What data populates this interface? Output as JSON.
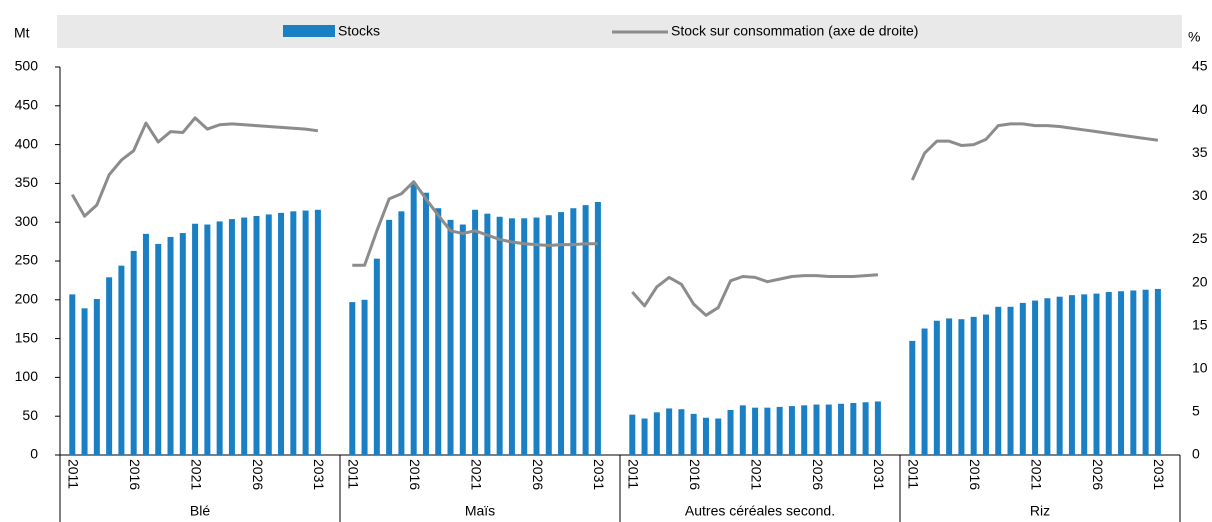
{
  "chart_data": {
    "type": "bar",
    "ylabel": "Mt",
    "y2label": "%",
    "ylim": [
      0,
      500
    ],
    "yticks": [
      0,
      50,
      100,
      150,
      200,
      250,
      300,
      350,
      400,
      450,
      500
    ],
    "y2lim": [
      0,
      45
    ],
    "y2ticks": [
      0,
      5,
      10,
      15,
      20,
      25,
      30,
      35,
      40,
      45
    ],
    "groups": [
      {
        "name": "Blé",
        "categories": [
          "2011",
          null,
          null,
          null,
          null,
          "2016",
          null,
          null,
          null,
          null,
          "2021",
          null,
          null,
          null,
          null,
          "2026",
          null,
          null,
          null,
          null,
          "2031"
        ]
      },
      {
        "name": "Maïs",
        "categories": [
          "2011",
          null,
          null,
          null,
          null,
          "2016",
          null,
          null,
          null,
          null,
          "2021",
          null,
          null,
          null,
          null,
          "2026",
          null,
          null,
          null,
          null,
          "2031"
        ]
      },
      {
        "name": "Autres céréales second.",
        "categories": [
          "2011",
          null,
          null,
          null,
          null,
          "2016",
          null,
          null,
          null,
          null,
          "2021",
          null,
          null,
          null,
          null,
          "2026",
          null,
          null,
          null,
          null,
          "2031"
        ]
      },
      {
        "name": "Riz",
        "categories": [
          "2011",
          null,
          null,
          null,
          null,
          "2016",
          null,
          null,
          null,
          null,
          "2021",
          null,
          null,
          null,
          null,
          "2026",
          null,
          null,
          null,
          null,
          "2031"
        ]
      }
    ],
    "series": [
      {
        "name": "Stocks",
        "type": "bar",
        "color": "#1b7fc3",
        "values": [
          [
            207,
            189,
            201,
            229,
            244,
            263,
            285,
            272,
            281,
            286,
            298,
            297,
            301,
            304,
            306,
            308,
            310,
            312,
            314,
            315,
            316
          ],
          [
            197,
            200,
            253,
            303,
            314,
            350,
            338,
            318,
            303,
            297,
            316,
            311,
            307,
            305,
            305,
            306,
            309,
            313,
            318,
            322,
            326
          ],
          [
            52,
            47,
            55,
            60,
            59,
            53,
            48,
            47,
            58,
            64,
            61,
            61,
            62,
            63,
            64,
            65,
            65,
            66,
            67,
            68,
            69
          ],
          [
            147,
            163,
            173,
            176,
            175,
            178,
            181,
            191,
            191,
            196,
            199,
            202,
            204,
            206,
            207,
            208,
            210,
            211,
            212,
            213,
            214
          ]
        ]
      },
      {
        "name": "Stock sur consommation (axe de droite)",
        "type": "line",
        "axis": "y2",
        "color": "#8c8c8c",
        "values": [
          [
            30.2,
            27.7,
            29,
            32.5,
            34.2,
            35.3,
            38.5,
            36.3,
            37.5,
            37.4,
            39.1,
            37.8,
            38.3,
            38.4,
            38.3,
            38.2,
            38.1,
            38,
            37.9,
            37.8,
            37.6
          ],
          [
            22,
            22,
            26,
            29.7,
            30.3,
            31.7,
            29.7,
            27.8,
            26,
            25.7,
            26,
            25.5,
            25,
            24.7,
            24.5,
            24.4,
            24.3,
            24.4,
            24.4,
            24.5,
            24.5
          ],
          [
            18.9,
            17.3,
            19.5,
            20.6,
            19.8,
            17.5,
            16.2,
            17.1,
            20.2,
            20.7,
            20.6,
            20.1,
            20.4,
            20.7,
            20.8,
            20.8,
            20.7,
            20.7,
            20.7,
            20.8,
            20.9
          ],
          [
            31.9,
            35,
            36.4,
            36.4,
            35.9,
            36,
            36.6,
            38.2,
            38.4,
            38.4,
            38.2,
            38.2,
            38.1,
            37.9,
            37.7,
            37.5,
            37.3,
            37.1,
            36.9,
            36.7,
            36.5
          ]
        ]
      }
    ]
  }
}
